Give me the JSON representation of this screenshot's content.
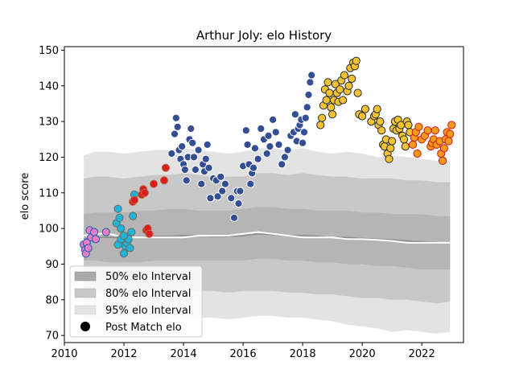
{
  "chart_data": {
    "type": "scatter",
    "title": "Arthur Joly: elo History",
    "xlabel": "",
    "ylabel": "elo score",
    "xlim": [
      2010.0,
      2023.4
    ],
    "ylim": [
      68,
      151
    ],
    "xticks": [
      2010,
      2012,
      2014,
      2016,
      2018,
      2020,
      2022
    ],
    "yticks": [
      70,
      80,
      90,
      100,
      110,
      120,
      130,
      140,
      150
    ],
    "grid": false,
    "legend_position": "lower-left",
    "legend": [
      {
        "label": "50% elo Interval",
        "swatch": "#aaaaaa"
      },
      {
        "label": "80% elo Interval",
        "swatch": "#c8c8c8"
      },
      {
        "label": "95% elo Interval",
        "swatch": "#e3e3e3"
      },
      {
        "label": "Post Match elo",
        "swatch": "#000000"
      }
    ],
    "bands": {
      "x": [
        2010.65,
        2011.0,
        2011.5,
        2012.0,
        2012.5,
        2013.0,
        2013.5,
        2014.0,
        2014.5,
        2015.0,
        2015.5,
        2016.0,
        2016.5,
        2017.0,
        2017.5,
        2018.0,
        2018.5,
        2019.0,
        2019.5,
        2020.0,
        2020.5,
        2021.0,
        2021.5,
        2022.0,
        2022.5,
        2022.95
      ],
      "p95_hi": [
        120.5,
        121.5,
        121.5,
        121.0,
        121.5,
        122.0,
        122.0,
        122.5,
        122.0,
        121.5,
        121.0,
        121.5,
        122.5,
        122.5,
        122.0,
        122.5,
        121.5,
        121.0,
        121.5,
        121.0,
        120.0,
        120.5,
        120.0,
        119.5,
        119.0,
        119.0
      ],
      "p80_hi": [
        114.0,
        114.5,
        114.5,
        114.0,
        114.5,
        115.0,
        115.0,
        115.5,
        115.0,
        114.5,
        114.5,
        114.5,
        115.5,
        115.5,
        115.0,
        115.5,
        115.0,
        114.5,
        114.5,
        114.0,
        114.0,
        114.0,
        113.5,
        113.5,
        113.0,
        113.0
      ],
      "p50_hi": [
        104.0,
        104.5,
        104.5,
        104.5,
        105.0,
        105.0,
        105.5,
        105.5,
        105.0,
        105.0,
        105.0,
        105.5,
        106.0,
        106.0,
        105.5,
        105.5,
        105.0,
        105.0,
        105.0,
        104.5,
        104.5,
        104.0,
        104.0,
        104.0,
        103.5,
        103.5
      ],
      "median": [
        97.0,
        97.5,
        97.5,
        97.5,
        97.5,
        97.8,
        97.8,
        98.0,
        98.0,
        97.8,
        97.8,
        98.0,
        98.5,
        98.3,
        98.0,
        98.0,
        97.8,
        97.5,
        97.5,
        97.2,
        97.0,
        96.8,
        96.5,
        96.3,
        96.0,
        96.0
      ],
      "p50_lo": [
        91.0,
        91.0,
        90.5,
        90.5,
        90.5,
        91.0,
        91.0,
        91.0,
        91.0,
        91.0,
        91.0,
        91.0,
        91.5,
        91.5,
        91.0,
        91.0,
        90.5,
        90.5,
        90.0,
        90.0,
        89.5,
        89.5,
        89.0,
        88.5,
        88.5,
        88.5
      ],
      "p80_lo": [
        83.0,
        83.0,
        82.0,
        82.0,
        82.0,
        82.5,
        82.5,
        82.5,
        82.5,
        82.5,
        82.0,
        82.5,
        82.5,
        82.5,
        82.0,
        82.0,
        81.5,
        81.5,
        81.0,
        80.5,
        80.5,
        80.0,
        80.0,
        79.5,
        79.0,
        79.5
      ],
      "p95_lo": [
        75.0,
        74.5,
        74.0,
        74.0,
        74.0,
        74.5,
        75.0,
        75.0,
        75.0,
        75.0,
        74.5,
        75.0,
        75.5,
        75.5,
        75.0,
        75.0,
        74.5,
        74.0,
        73.0,
        72.5,
        72.0,
        71.0,
        71.5,
        71.0,
        70.5,
        71.0
      ],
      "white_line": [
        98.0,
        98.5,
        98.5,
        97.5,
        97.5,
        97.5,
        97.5,
        97.5,
        98.0,
        98.0,
        98.0,
        98.5,
        99.0,
        98.5,
        98.0,
        97.5,
        97.5,
        97.5,
        97.0,
        97.0,
        96.8,
        96.5,
        96.0,
        96.0,
        96.0,
        96.0
      ]
    },
    "series": [
      {
        "color": "#e87dc6",
        "edge": "#1a5fb4",
        "x": [
          2010.65,
          2010.7,
          2010.72,
          2010.75,
          2010.8,
          2010.85,
          2010.9,
          2011.0,
          2011.05,
          2011.4
        ],
        "y": [
          95.5,
          94.0,
          93.0,
          96.0,
          94.5,
          99.5,
          97.5,
          99.0,
          97.0,
          99.0
        ]
      },
      {
        "color": "#1fb5d6",
        "edge": "#6a6a6a",
        "x": [
          2011.75,
          2011.8,
          2011.85,
          2011.9,
          2011.95,
          2012.0,
          2012.05,
          2012.1,
          2012.15,
          2012.2,
          2012.25,
          2012.3,
          2012.35,
          2011.8,
          2011.9,
          2012.0
        ],
        "y": [
          101.5,
          105.5,
          103.0,
          100.0,
          96.0,
          93.0,
          95.0,
          96.0,
          97.0,
          94.5,
          99.0,
          103.5,
          109.5,
          95.5,
          97.0,
          98.0
        ]
      },
      {
        "color": "#dd1c1c",
        "edge": "#b07050",
        "x": [
          2012.3,
          2012.35,
          2012.6,
          2012.65,
          2012.7,
          2012.75,
          2012.8,
          2012.85,
          2013.0,
          2013.35,
          2013.4
        ],
        "y": [
          107.5,
          108.0,
          109.5,
          111.0,
          110.0,
          99.5,
          100.0,
          98.5,
          112.5,
          113.5,
          117.0
        ]
      },
      {
        "color": "#334e94",
        "edge": "#ffffff",
        "x": [
          2013.6,
          2013.7,
          2013.75,
          2013.8,
          2013.85,
          2013.9,
          2013.95,
          2014.0,
          2014.05,
          2014.1,
          2014.15,
          2014.2,
          2014.25,
          2014.3,
          2014.35,
          2014.4,
          2014.5,
          2014.6,
          2014.65,
          2014.7,
          2014.75,
          2014.8,
          2014.85,
          2014.9,
          2015.0,
          2015.1,
          2015.15,
          2015.25,
          2015.3,
          2015.4,
          2015.6,
          2015.7,
          2015.8,
          2015.85,
          2015.9,
          2016.0,
          2016.1,
          2016.15,
          2016.2,
          2016.25,
          2016.3,
          2016.35,
          2016.4,
          2016.5,
          2016.6,
          2016.7,
          2016.8,
          2016.85,
          2016.9,
          2017.0,
          2017.1,
          2017.2,
          2017.3,
          2017.4,
          2017.5,
          2017.6,
          2017.7,
          2017.75,
          2017.8,
          2017.85,
          2017.9,
          2017.95,
          2018.0,
          2018.05,
          2018.1,
          2018.15,
          2018.2,
          2018.25,
          2018.3
        ],
        "y": [
          121.0,
          126.5,
          131.0,
          128.5,
          122.0,
          119.5,
          123.0,
          118.0,
          116.5,
          113.5,
          120.0,
          125.0,
          128.0,
          124.0,
          120.0,
          116.5,
          122.0,
          112.5,
          118.0,
          116.0,
          119.5,
          123.5,
          117.0,
          108.5,
          114.0,
          113.5,
          109.0,
          114.5,
          110.5,
          112.5,
          108.5,
          103.0,
          110.5,
          107.0,
          110.5,
          117.5,
          127.5,
          123.5,
          118.0,
          112.5,
          115.5,
          117.0,
          122.5,
          119.5,
          128.0,
          125.0,
          121.0,
          126.0,
          123.0,
          130.5,
          127.0,
          123.5,
          118.0,
          120.0,
          122.0,
          126.0,
          127.0,
          132.0,
          124.5,
          128.0,
          129.0,
          130.5,
          124.0,
          127.0,
          131.0,
          134.0,
          137.5,
          141.0,
          143.0
        ]
      },
      {
        "color": "#f1c232",
        "edge": "#2a2a2a",
        "x": [
          2018.6,
          2018.65,
          2018.7,
          2018.75,
          2018.8,
          2018.85,
          2018.9,
          2018.95,
          2019.0,
          2019.05,
          2019.1,
          2019.15,
          2019.2,
          2019.25,
          2019.3,
          2019.35,
          2019.4,
          2019.5,
          2019.55,
          2019.6,
          2019.65,
          2019.7,
          2019.75,
          2019.8,
          2019.85,
          2019.9,
          2020.0,
          2020.1,
          2020.3,
          2020.4,
          2020.45,
          2020.5,
          2020.55,
          2020.6,
          2020.65,
          2020.7,
          2020.75,
          2020.8,
          2020.85,
          2020.9,
          2020.95,
          2021.0,
          2021.05,
          2021.1,
          2021.15,
          2021.2,
          2021.25,
          2021.3,
          2021.35,
          2021.4,
          2021.45,
          2021.5,
          2021.55,
          2021.6
        ],
        "y": [
          129.0,
          131.0,
          134.5,
          139.0,
          136.0,
          141.0,
          138.0,
          134.0,
          132.0,
          136.0,
          140.5,
          138.0,
          135.5,
          139.0,
          141.5,
          136.0,
          143.0,
          138.5,
          140.0,
          145.0,
          142.0,
          146.5,
          145.5,
          147.0,
          138.0,
          132.0,
          131.5,
          133.5,
          130.0,
          131.5,
          132.0,
          133.5,
          129.0,
          130.0,
          127.5,
          123.5,
          123.0,
          125.0,
          121.0,
          119.5,
          122.5,
          124.5,
          128.0,
          130.0,
          127.5,
          130.5,
          128.0,
          129.0,
          126.0,
          125.0,
          123.0,
          130.0,
          129.0,
          127.0
        ]
      },
      {
        "color": "#f59a1b",
        "edge": "#d01818",
        "x": [
          2021.7,
          2021.75,
          2021.8,
          2021.85,
          2021.9,
          2022.0,
          2022.1,
          2022.2,
          2022.3,
          2022.35,
          2022.4,
          2022.45,
          2022.5,
          2022.6,
          2022.65,
          2022.7,
          2022.75,
          2022.8,
          2022.85,
          2022.9,
          2022.95,
          2023.0
        ],
        "y": [
          123.5,
          125.5,
          127.0,
          121.0,
          128.5,
          125.0,
          126.0,
          127.5,
          123.0,
          124.0,
          125.0,
          127.5,
          123.5,
          124.5,
          121.0,
          119.0,
          122.5,
          125.0,
          127.0,
          124.5,
          126.5,
          129.0
        ]
      }
    ]
  }
}
